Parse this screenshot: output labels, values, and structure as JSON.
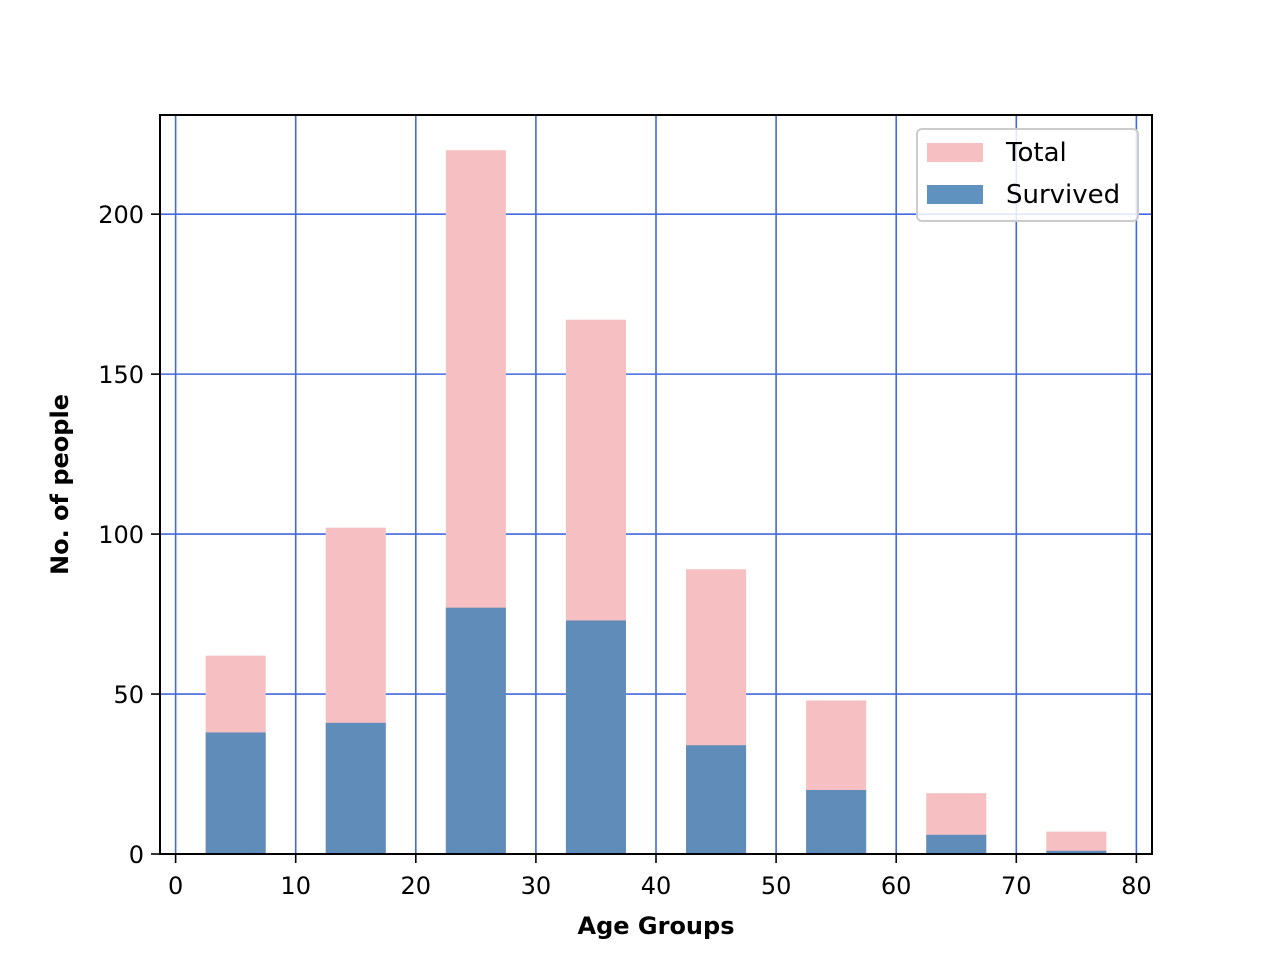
{
  "chart_data": {
    "type": "bar",
    "stacking": "overlay",
    "x": [
      5,
      15,
      25,
      35,
      45,
      55,
      65,
      75
    ],
    "bar_width": 5,
    "series": [
      {
        "name": "Total",
        "color": "#f6bfc1",
        "values": [
          62,
          102,
          220,
          167,
          89,
          48,
          19,
          7
        ]
      },
      {
        "name": "Survived",
        "color": "#4f86b8",
        "opacity": 0.9,
        "values": [
          38,
          41,
          77,
          73,
          34,
          20,
          6,
          1
        ]
      }
    ],
    "title": "",
    "xlabel": "Age Groups",
    "ylabel": "No. of people",
    "xlim": [
      -1.3,
      81.3
    ],
    "ylim": [
      0,
      231
    ],
    "xticks": [
      0,
      10,
      20,
      30,
      40,
      50,
      60,
      70,
      80
    ],
    "yticks": [
      0,
      50,
      100,
      150,
      200
    ],
    "grid": true,
    "grid_color": "#4169e1",
    "legend": {
      "placement": "upper right",
      "entries": [
        "Total",
        "Survived"
      ]
    }
  }
}
